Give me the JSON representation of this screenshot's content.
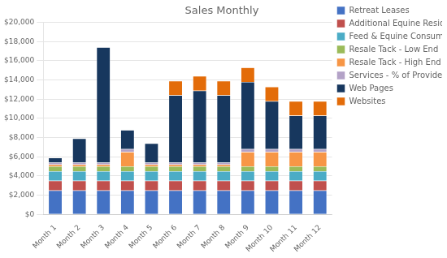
{
  "chart_data": {
    "type": "bar",
    "title": "Sales Monthly",
    "categories": [
      "Month 1",
      "Month 2",
      "Month 3",
      "Month 4",
      "Month 5",
      "Month 6",
      "Month 7",
      "Month 8",
      "Month 9",
      "Month 10",
      "Month 11",
      "Month 12"
    ],
    "series": [
      {
        "name": "Retreat Leases",
        "color": "#4472C4",
        "values": [
          2500,
          2500,
          2500,
          2500,
          2500,
          2500,
          2500,
          2500,
          2500,
          2500,
          2500,
          2500
        ]
      },
      {
        "name": "Additional Equine Residents",
        "color": "#C0504D",
        "values": [
          1000,
          1000,
          1000,
          1000,
          1000,
          1000,
          1000,
          1000,
          1000,
          1000,
          1000,
          1000
        ]
      },
      {
        "name": "Feed & Equine Consumables",
        "color": "#4BACC6",
        "values": [
          1000,
          1000,
          1000,
          1000,
          1000,
          1000,
          1000,
          1000,
          1000,
          1000,
          1000,
          1000
        ]
      },
      {
        "name": "Resale Tack - Low End",
        "color": "#9BBB59",
        "values": [
          500,
          500,
          500,
          500,
          500,
          500,
          500,
          500,
          500,
          500,
          500,
          500
        ]
      },
      {
        "name": "Resale Tack - High End",
        "color": "#F79646",
        "values": [
          200,
          200,
          200,
          1500,
          200,
          200,
          200,
          200,
          1500,
          1500,
          1500,
          1500
        ]
      },
      {
        "name": "Services - % of Provider Revenue",
        "color": "#B3A2C7",
        "values": [
          200,
          200,
          200,
          300,
          200,
          200,
          200,
          200,
          300,
          300,
          300,
          300
        ]
      },
      {
        "name": "Web Pages",
        "color": "#17375E",
        "values": [
          500,
          2500,
          12000,
          2000,
          2000,
          7000,
          7500,
          7000,
          7000,
          5000,
          3500,
          3500
        ]
      },
      {
        "name": "Websites",
        "color": "#E36C09",
        "values": [
          0,
          0,
          0,
          0,
          0,
          1500,
          1500,
          1500,
          1500,
          1500,
          1500,
          1500
        ]
      }
    ],
    "stacked": true,
    "ylim": [
      0,
      20000
    ],
    "yticks": [
      {
        "value": 0,
        "label": "$0"
      },
      {
        "value": 2000,
        "label": "$2,000"
      },
      {
        "value": 4000,
        "label": "$4,000"
      },
      {
        "value": 6000,
        "label": "$6,000"
      },
      {
        "value": 8000,
        "label": "$8,000"
      },
      {
        "value": 10000,
        "label": "$10,000"
      },
      {
        "value": 12000,
        "label": "$12,000"
      },
      {
        "value": 14000,
        "label": "$14,000"
      },
      {
        "value": 16000,
        "label": "$16,000"
      },
      {
        "value": 18000,
        "label": "$18,000"
      },
      {
        "value": 20000,
        "label": "$20,000"
      }
    ],
    "grid": true,
    "legend": "right"
  }
}
